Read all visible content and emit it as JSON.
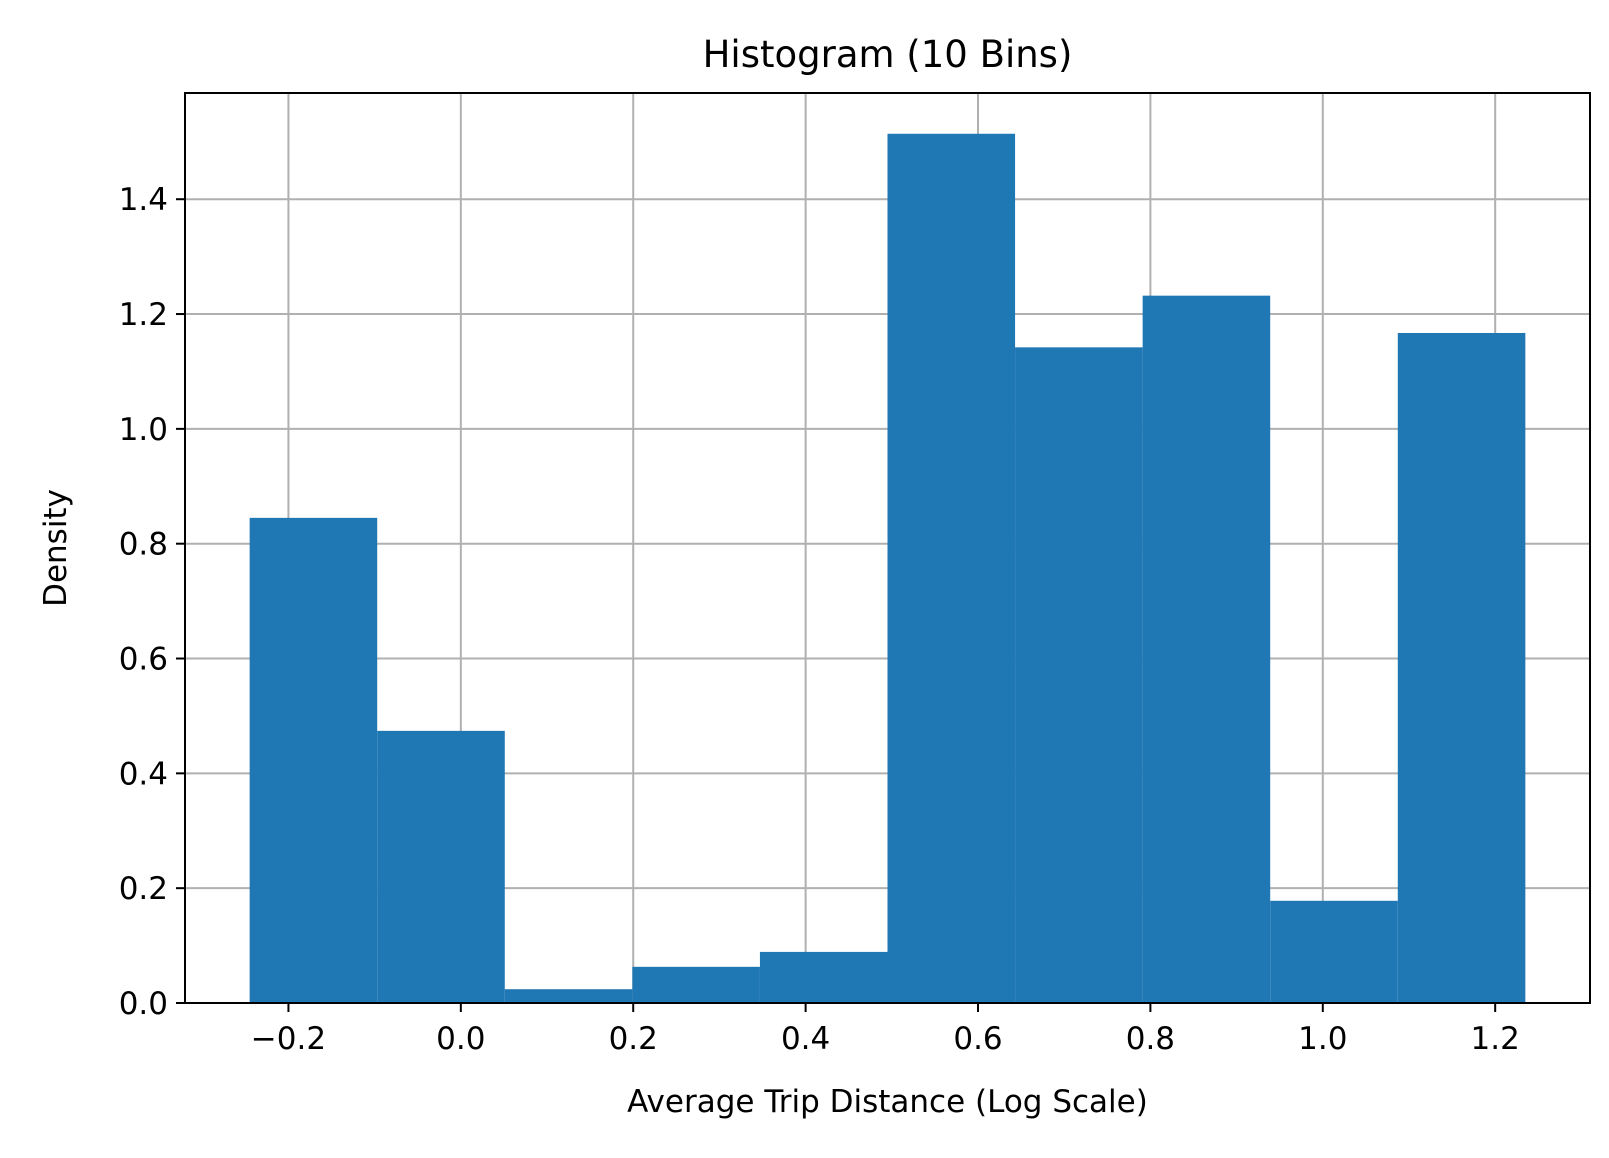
{
  "chart_data": {
    "type": "bar",
    "title": "Histogram (10 Bins)",
    "xlabel": "Average Trip Distance (Log Scale)",
    "ylabel": "Density",
    "xlim": [
      -0.32,
      1.31
    ],
    "ylim": [
      0,
      1.585
    ],
    "x_ticks": [
      -0.2,
      0.0,
      0.2,
      0.4,
      0.6,
      0.8,
      1.0,
      1.2
    ],
    "x_tick_labels": [
      "−0.2",
      "0.0",
      "0.2",
      "0.4",
      "0.6",
      "0.8",
      "1.0",
      "1.2"
    ],
    "y_ticks": [
      0.0,
      0.2,
      0.4,
      0.6,
      0.8,
      1.0,
      1.2,
      1.4
    ],
    "y_tick_labels": [
      "0.0",
      "0.2",
      "0.4",
      "0.6",
      "0.8",
      "1.0",
      "1.2",
      "1.4"
    ],
    "grid": true,
    "bins": [
      {
        "x0": -0.245,
        "x1": -0.097,
        "value": 0.845
      },
      {
        "x0": -0.097,
        "x1": 0.051,
        "value": 0.474
      },
      {
        "x0": 0.051,
        "x1": 0.199,
        "value": 0.024
      },
      {
        "x0": 0.199,
        "x1": 0.347,
        "value": 0.063
      },
      {
        "x0": 0.347,
        "x1": 0.495,
        "value": 0.089
      },
      {
        "x0": 0.495,
        "x1": 0.643,
        "value": 1.514
      },
      {
        "x0": 0.643,
        "x1": 0.791,
        "value": 1.142
      },
      {
        "x0": 0.791,
        "x1": 0.939,
        "value": 1.232
      },
      {
        "x0": 0.939,
        "x1": 1.087,
        "value": 0.178
      },
      {
        "x0": 1.087,
        "x1": 1.235,
        "value": 1.167
      }
    ],
    "bar_color": "#1f77b4",
    "grid_color": "#b0b0b0"
  }
}
